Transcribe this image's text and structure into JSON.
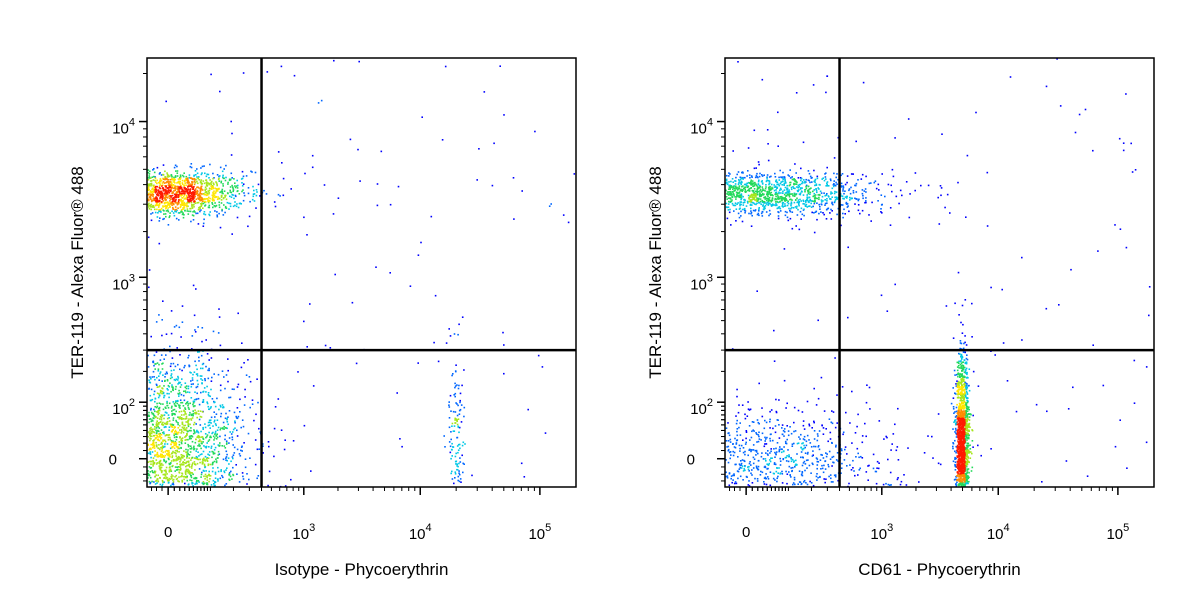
{
  "chart_data": [
    {
      "type": "scatter",
      "title": "",
      "xlabel": "Isotype - Phycoerythrin",
      "ylabel": "TER-119 - Alexa Fluor® 488",
      "x_scale": "logicle",
      "y_scale": "logicle",
      "xlim": [
        -40,
        200000
      ],
      "ylim": [
        -40,
        25000
      ],
      "x_ticks": [
        {
          "value": 0,
          "label": "0"
        },
        {
          "value": 1000,
          "base": "10",
          "exp": "3"
        },
        {
          "value": 10000,
          "base": "10",
          "exp": "4"
        },
        {
          "value": 100000,
          "base": "10",
          "exp": "5"
        }
      ],
      "y_ticks": [
        {
          "value": 0,
          "label": "0"
        },
        {
          "value": 100,
          "base": "10",
          "exp": "2"
        },
        {
          "value": 1000,
          "base": "10",
          "exp": "3"
        },
        {
          "value": 10000,
          "base": "10",
          "exp": "4"
        }
      ],
      "quadrant_gate": {
        "x": 400,
        "y": 300
      },
      "grid": false,
      "color_scale": "density (blue-green-yellow-red)",
      "populations": [
        {
          "x": 0,
          "y": 3500,
          "spread_x": 1.0,
          "spread_y": 0.22,
          "n": 1700
        },
        {
          "x": 0,
          "y": 0,
          "spread_x": 1.0,
          "spread_y": 1.0,
          "n": 3000
        },
        {
          "x": 20000,
          "y": 30,
          "spread_x": 0.1,
          "spread_y": 0.9,
          "n": 140
        }
      ]
    },
    {
      "type": "scatter",
      "title": "",
      "xlabel": "CD61 - Phycoerythrin",
      "ylabel": "TER-119 - Alexa Fluor® 488",
      "x_scale": "logicle",
      "y_scale": "logicle",
      "xlim": [
        -40,
        200000
      ],
      "ylim": [
        -40,
        25000
      ],
      "x_ticks": [
        {
          "value": 0,
          "label": "0"
        },
        {
          "value": 1000,
          "base": "10",
          "exp": "3"
        },
        {
          "value": 10000,
          "base": "10",
          "exp": "4"
        },
        {
          "value": 100000,
          "base": "10",
          "exp": "5"
        }
      ],
      "y_ticks": [
        {
          "value": 0,
          "label": "0"
        },
        {
          "value": 100,
          "base": "10",
          "exp": "2"
        },
        {
          "value": 1000,
          "base": "10",
          "exp": "3"
        },
        {
          "value": 10000,
          "base": "10",
          "exp": "4"
        }
      ],
      "quadrant_gate": {
        "x": 400,
        "y": 300
      },
      "grid": false,
      "color_scale": "density (blue-green-yellow-red)",
      "populations": [
        {
          "x": 20,
          "y": 3500,
          "spread_x": 1.5,
          "spread_y": 0.22,
          "n": 1500
        },
        {
          "x": 20,
          "y": 0,
          "spread_x": 1.8,
          "spread_y": 0.5,
          "n": 1100
        },
        {
          "x": 5000,
          "y": 10,
          "spread_x": 0.09,
          "spread_y": 0.9,
          "n": 1700
        }
      ]
    }
  ]
}
